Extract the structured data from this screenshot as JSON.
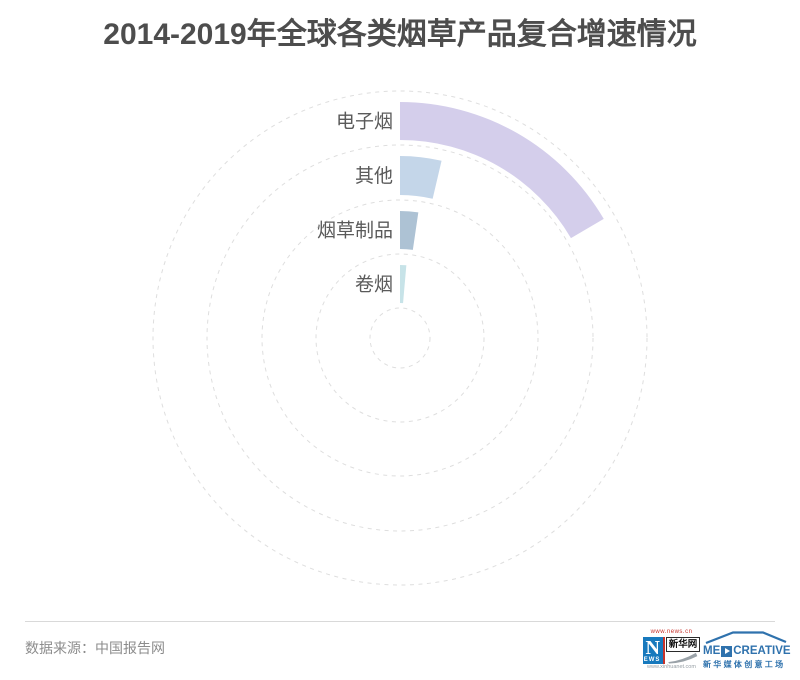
{
  "title": "2014-2019年全球各类烟草产品复合增速情况",
  "footer": {
    "source": "数据来源：中国报告网"
  },
  "logos": {
    "xinhua": {
      "top_url": "www.news.cn",
      "n": "N",
      "ews": "EWS",
      "name": "新华网",
      "bottom_url": "www.xinhuanet.com"
    },
    "mediacreative": {
      "prefix": "ME",
      "suffix": "CREATIVE",
      "subtitle": "新华媒体创意工场"
    }
  },
  "brand_colors": {
    "title-gray": "#4d4d4d",
    "footer-gray": "#8c8c8c",
    "divider-gray": "#d9d9d9",
    "xinhua-blue": "#1779bd",
    "xinhua-red": "#c8332b",
    "mc-blue": "#2f72ad"
  },
  "chart_data": {
    "type": "radial-bar",
    "title": "2014-2019年全球各类烟草产品复合增速情况",
    "categories": [
      "电子烟",
      "其他",
      "烟草制品",
      "卷烟"
    ],
    "sweep_degrees": [
      59.7,
      13.2,
      8.3,
      5.0
    ],
    "values_labeled": false,
    "start_angle_deg": 0,
    "direction": "clockwise",
    "order": "outermost-to-innermost",
    "colors": [
      "#d4ceeb",
      "#c4d6e9",
      "#adc2d4",
      "#c7e3e8"
    ],
    "grid_color": "#dedede",
    "label_color": "#5a5a5a",
    "grid": {
      "rings": 5,
      "style": "dashed-circles"
    }
  }
}
